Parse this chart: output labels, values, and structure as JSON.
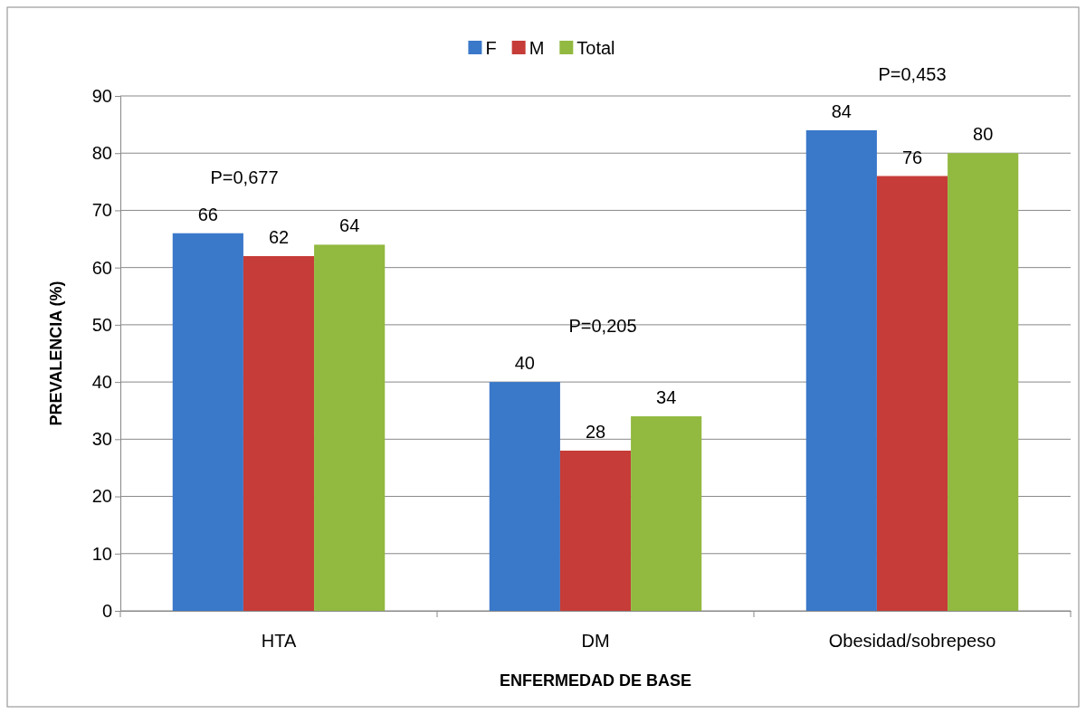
{
  "chart_data": {
    "type": "bar",
    "xlabel": "ENFERMEDAD DE BASE",
    "ylabel": "PREVALENCIA (%)",
    "categories": [
      "HTA",
      "DM",
      "Obesidad/sobrepeso"
    ],
    "series": [
      {
        "name": "F",
        "color": "#3a78c9",
        "values": [
          66,
          40,
          84
        ]
      },
      {
        "name": "M",
        "color": "#c63c38",
        "values": [
          62,
          28,
          76
        ]
      },
      {
        "name": "Total",
        "color": "#92b940",
        "values": [
          64,
          34,
          80
        ]
      }
    ],
    "ylim": [
      0,
      90
    ],
    "yticks": [
      0,
      10,
      20,
      30,
      40,
      50,
      60,
      70,
      80,
      90
    ],
    "grid": "y",
    "legend": "top",
    "data_labels": true,
    "annotations": [
      "P=0,677",
      "P=0,205",
      "P=0,453"
    ]
  }
}
